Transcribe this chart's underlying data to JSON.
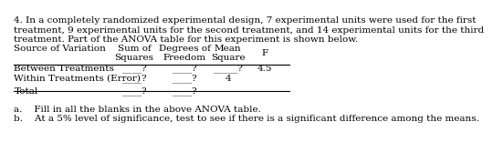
{
  "paragraph": "4. In a completely randomized experimental design, 7 experimental units were used for the first\ntreatment, 9 experimental units for the second treatment, and 14 experimental units for the third\ntreatment. Part of the ANOVA table for this experiment is shown below.",
  "col_headers": [
    "",
    "Sum of\nSquares",
    "Degrees of\nFreedom",
    "Mean\nSquare",
    "F"
  ],
  "rows": [
    [
      "Between Treatments",
      "____?",
      "____?",
      "_____?",
      "4.5"
    ],
    [
      "Within Treatments (Error)",
      "____?",
      "____?",
      "4",
      ""
    ],
    [
      "Total",
      "____?",
      "____?",
      "",
      ""
    ]
  ],
  "footer_a": "a.    Fill in all the blanks in the above ANOVA table.",
  "footer_b": "b.    At a 5% level of significance, test to see if there is a significant difference among the means.",
  "bg_color": "#ffffff",
  "text_color": "#000000",
  "font_size": 7.5,
  "header_font_size": 7.5
}
